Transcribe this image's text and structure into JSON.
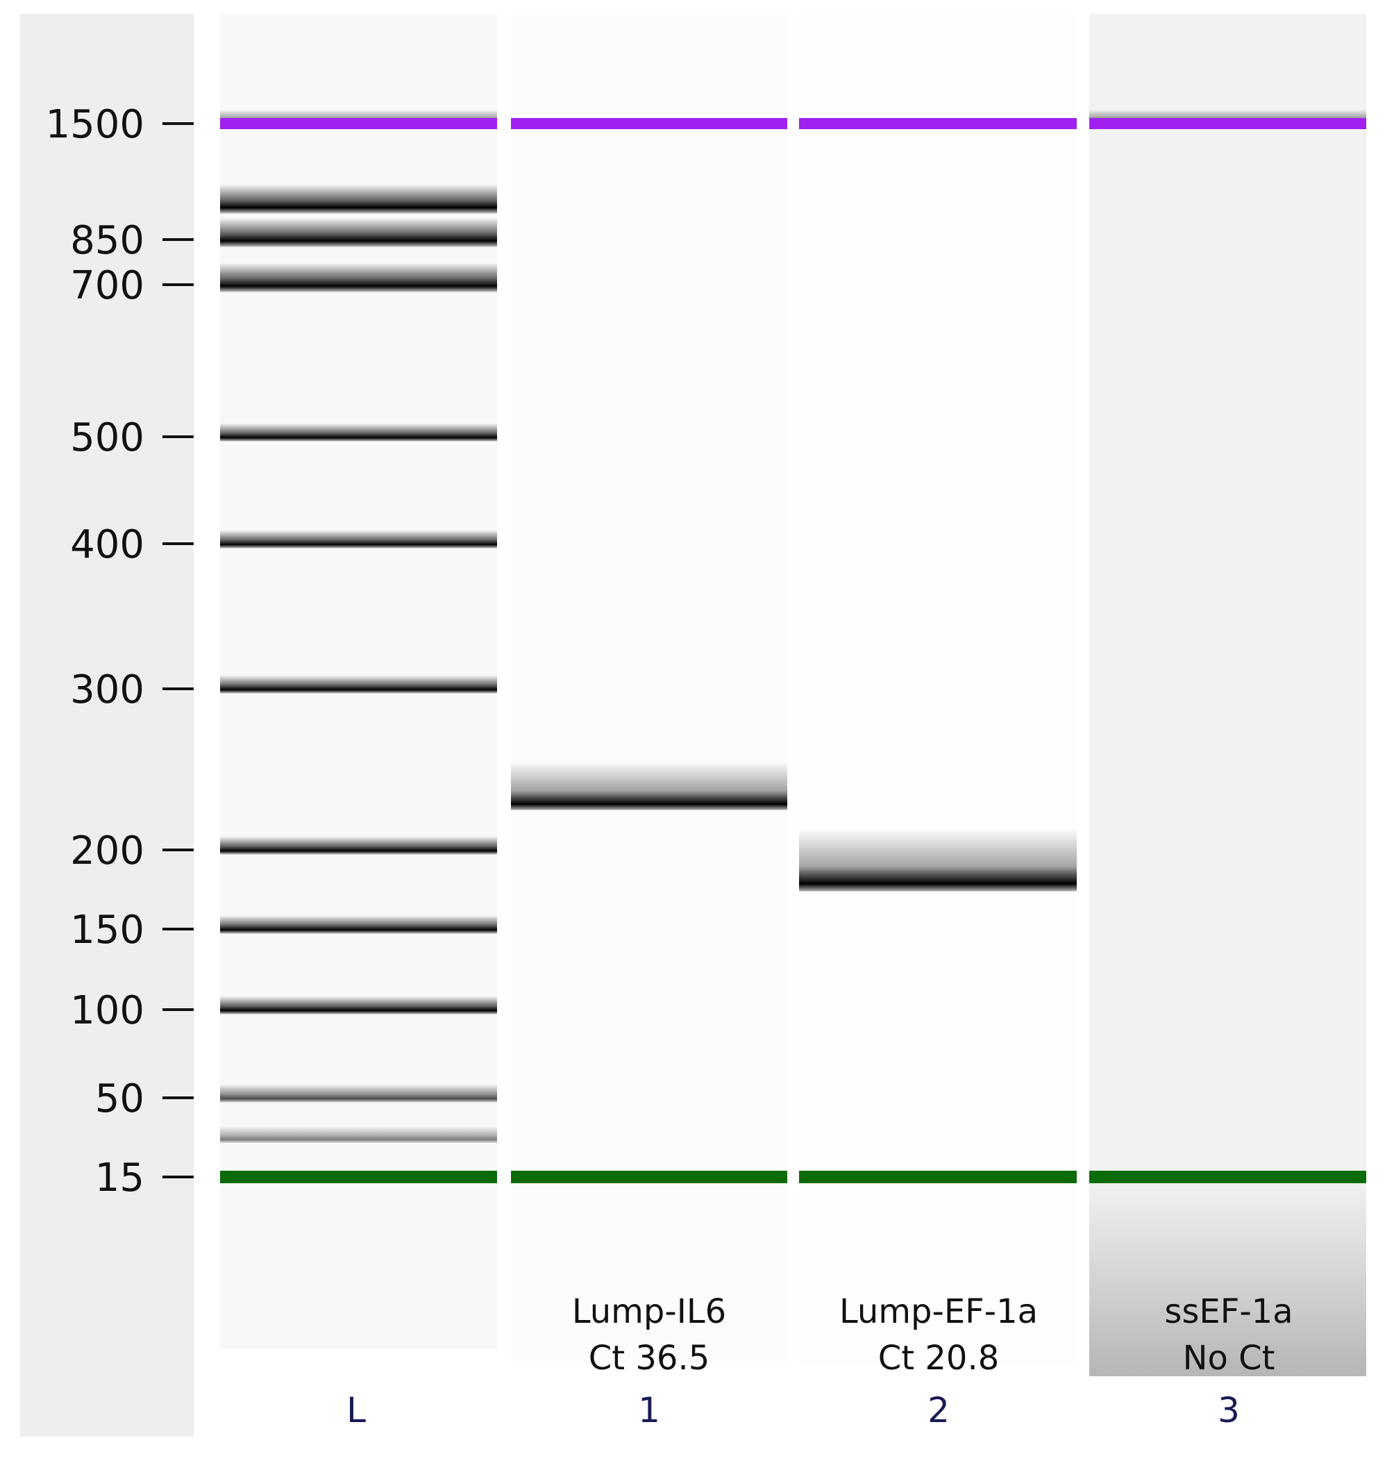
{
  "axis": {
    "ticks": [
      "1500",
      "850",
      "700",
      "500",
      "400",
      "300",
      "200",
      "150",
      "100",
      "50",
      "15"
    ]
  },
  "lanes": [
    {
      "number": "L"
    },
    {
      "name": "Lump-IL6",
      "ct": "Ct 36.5",
      "number": "1"
    },
    {
      "name": "Lump-EF-1a",
      "ct": "Ct 20.8",
      "number": "2"
    },
    {
      "name": "ssEF-1a",
      "ct": "No Ct",
      "number": "3"
    }
  ]
}
